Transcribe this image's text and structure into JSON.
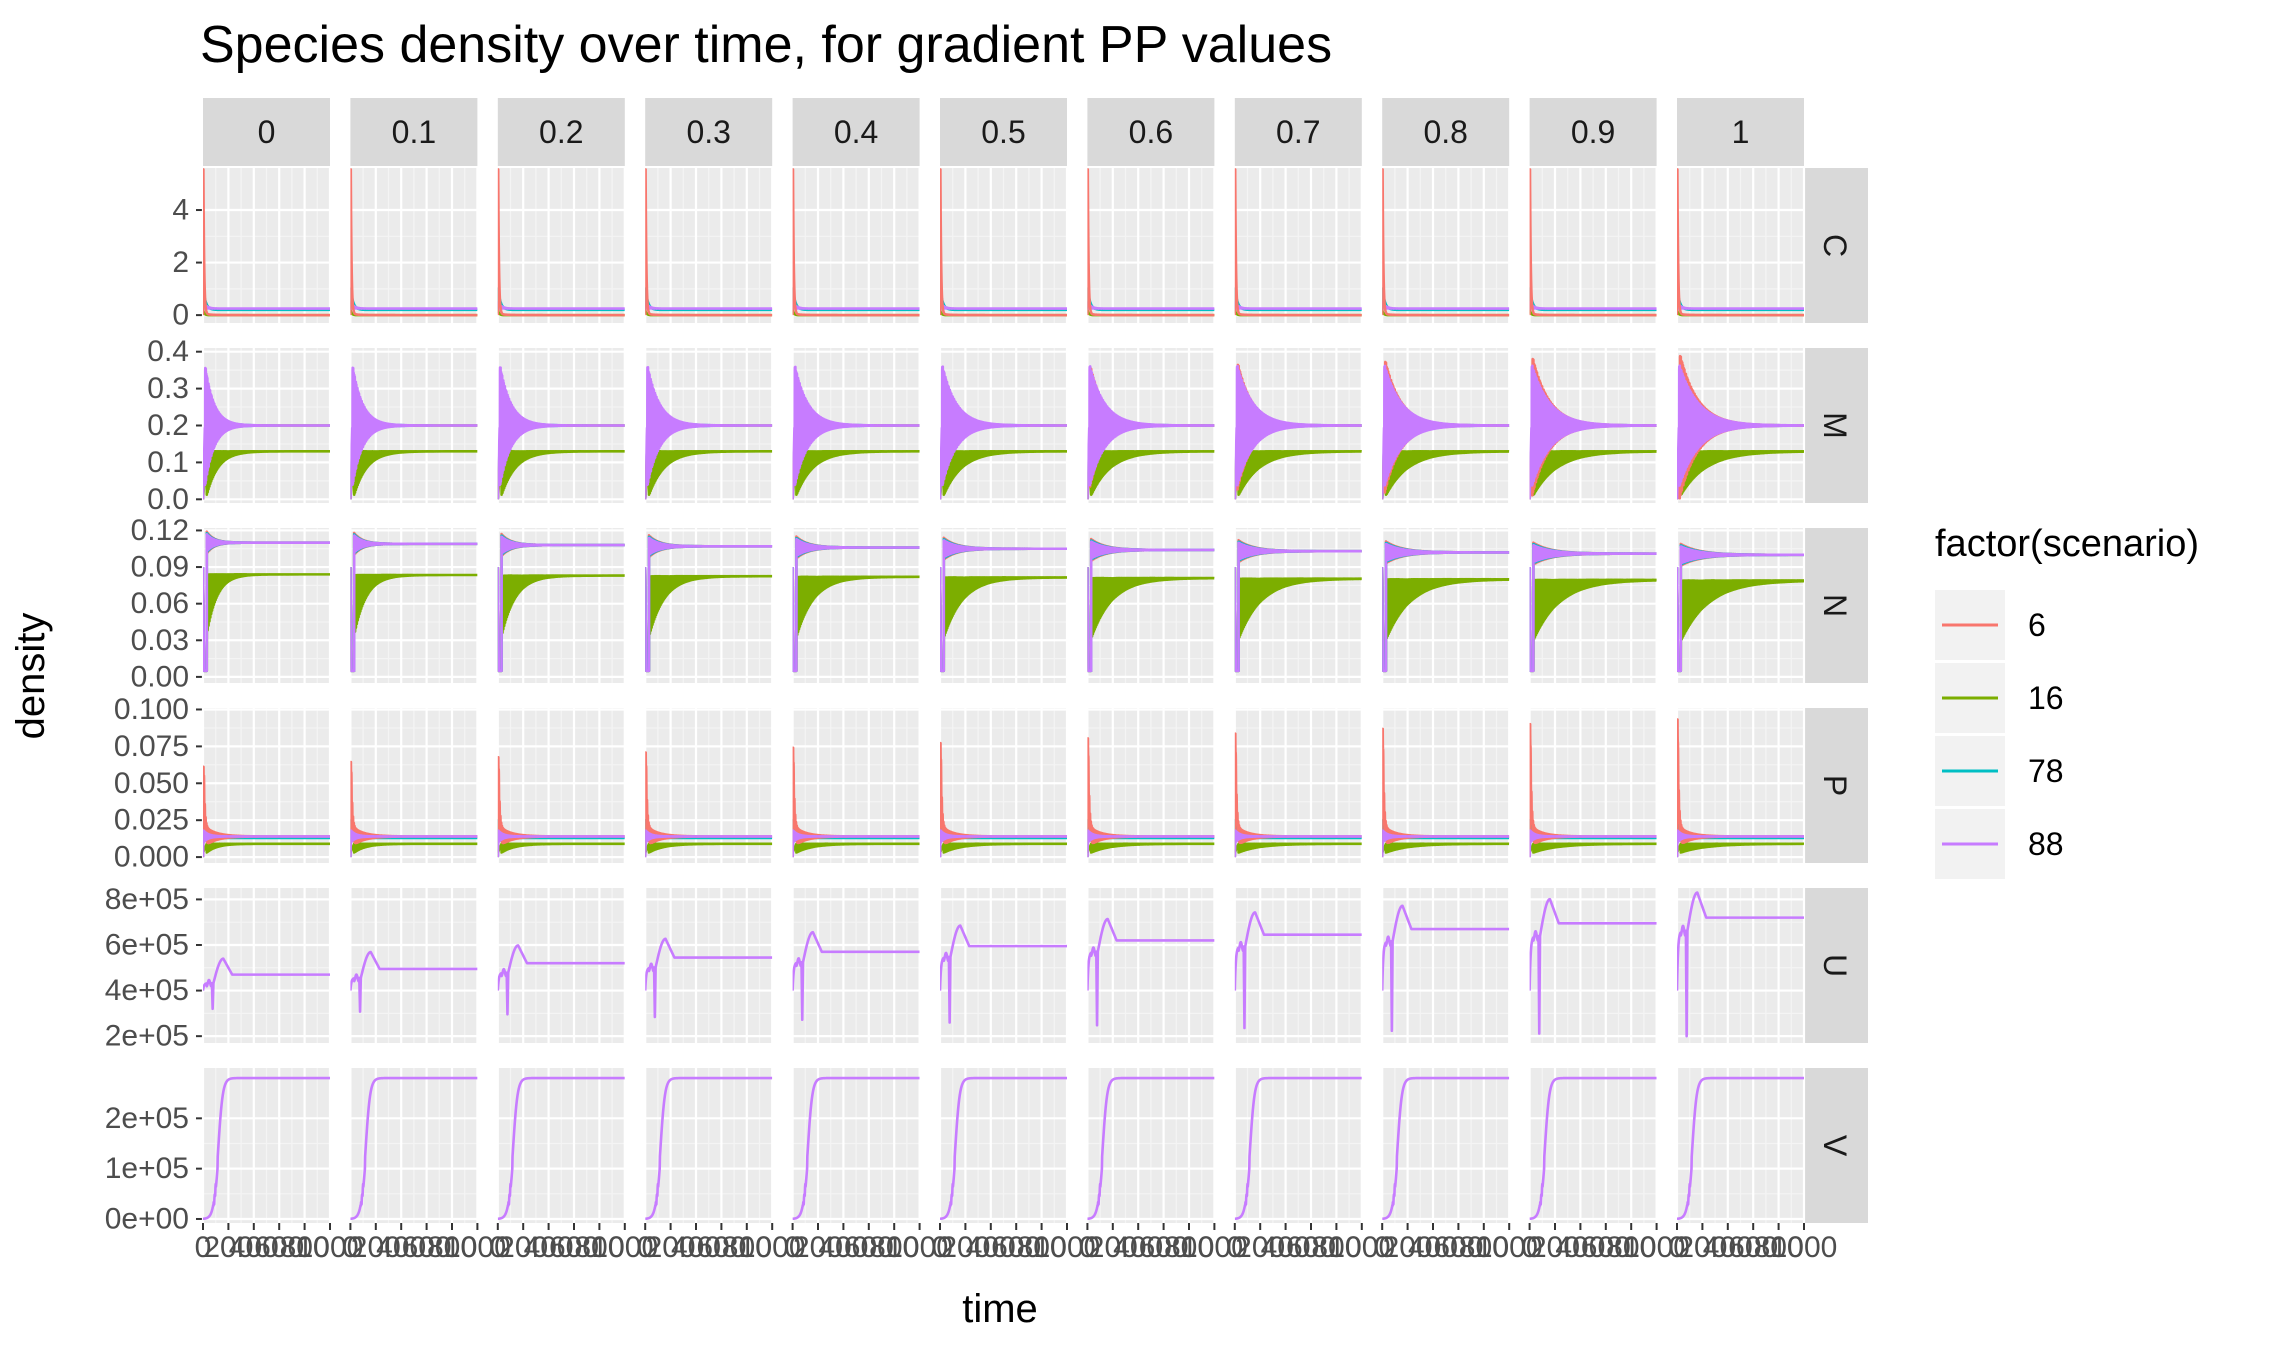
{
  "chart_data": {
    "type": "line",
    "title": "Species density over time, for gradient PP values",
    "xlabel": "time",
    "ylabel": "density",
    "facet_cols": [
      "0",
      "0.1",
      "0.2",
      "0.3",
      "0.4",
      "0.5",
      "0.6",
      "0.7",
      "0.8",
      "0.9",
      "1"
    ],
    "facet_rows": [
      "C",
      "M",
      "N",
      "P",
      "U",
      "V"
    ],
    "x_ticks": [
      "0",
      "200",
      "400",
      "600",
      "800",
      "1000"
    ],
    "xlim": [
      0,
      1000
    ],
    "legend": {
      "title": "factor(scenario)",
      "placement": "right",
      "entries": [
        {
          "label": "6",
          "color": "#F8766D"
        },
        {
          "label": "16",
          "color": "#7CAE00"
        },
        {
          "label": "78",
          "color": "#00BFC4"
        },
        {
          "label": "88",
          "color": "#C77CFF"
        }
      ]
    },
    "rows": {
      "C": {
        "ylim": [
          -0.3,
          5.6
        ],
        "y_ticks": [
          {
            "v": 0,
            "label": "0"
          },
          {
            "v": 2,
            "label": "2"
          },
          {
            "v": 4,
            "label": "4"
          }
        ],
        "series": {
          "6": {
            "peak": 5.5,
            "eq": 0.0
          },
          "16": {
            "peak": 0.3,
            "eq": 0.0
          },
          "78": {
            "peak": 0.9,
            "eq": 0.2
          },
          "88": {
            "peak": 0.5,
            "eq": 0.25
          }
        }
      },
      "M": {
        "ylim": [
          -0.01,
          0.41
        ],
        "y_ticks": [
          {
            "v": 0,
            "label": "0.0"
          },
          {
            "v": 0.1,
            "label": "0.1"
          },
          {
            "v": 0.2,
            "label": "0.2"
          },
          {
            "v": 0.3,
            "label": "0.3"
          },
          {
            "v": 0.4,
            "label": "0.4"
          }
        ],
        "series": {
          "6": {
            "eq": 0.2,
            "peak_start": 0.32,
            "peak_end": 0.4
          },
          "16": {
            "eq": 0.13
          },
          "78": {
            "eq": 0.2
          },
          "88": {
            "eq": 0.2
          }
        }
      },
      "N": {
        "ylim": [
          -0.005,
          0.122
        ],
        "y_ticks": [
          {
            "v": 0,
            "label": "0.00"
          },
          {
            "v": 0.03,
            "label": "0.03"
          },
          {
            "v": 0.06,
            "label": "0.06"
          },
          {
            "v": 0.09,
            "label": "0.09"
          },
          {
            "v": 0.12,
            "label": "0.12"
          }
        ],
        "series": {
          "6": {
            "eq_start": 0.11,
            "eq_end": 0.1
          },
          "16": {
            "eq_start": 0.084,
            "eq_end": 0.079
          },
          "78": {
            "eq_start": 0.11,
            "eq_end": 0.1
          },
          "88": {
            "eq_start": 0.11,
            "eq_end": 0.1
          }
        }
      },
      "P": {
        "ylim": [
          -0.004,
          0.101
        ],
        "y_ticks": [
          {
            "v": 0,
            "label": "0.000"
          },
          {
            "v": 0.025,
            "label": "0.025"
          },
          {
            "v": 0.05,
            "label": "0.050"
          },
          {
            "v": 0.075,
            "label": "0.075"
          },
          {
            "v": 0.1,
            "label": "0.100"
          }
        ],
        "series": {
          "6": {
            "peak_start": 0.067,
            "peak_end": 0.099,
            "eq": 0.014
          },
          "16": {
            "eq": 0.009
          },
          "78": {
            "eq": 0.013
          },
          "88": {
            "eq": 0.014
          }
        }
      },
      "U": {
        "ylim": [
          170000,
          850000
        ],
        "y_ticks": [
          {
            "v": 200000,
            "label": "2e+05"
          },
          {
            "v": 400000,
            "label": "4e+05"
          },
          {
            "v": 600000,
            "label": "6e+05"
          },
          {
            "v": 800000,
            "label": "8e+05"
          }
        ],
        "series": {
          "88": {
            "eq_start": 470000,
            "eq_end": 720000,
            "peak_start": 540000,
            "peak_end": 830000,
            "dip_start": 320000,
            "dip_end": 200000
          }
        }
      },
      "V": {
        "ylim": [
          -8000,
          300000
        ],
        "y_ticks": [
          {
            "v": 0,
            "label": "0e+00"
          },
          {
            "v": 100000,
            "label": "1e+05"
          },
          {
            "v": 200000,
            "label": "2e+05"
          }
        ],
        "series": {
          "88": {
            "plateau": 280000
          }
        }
      }
    }
  }
}
